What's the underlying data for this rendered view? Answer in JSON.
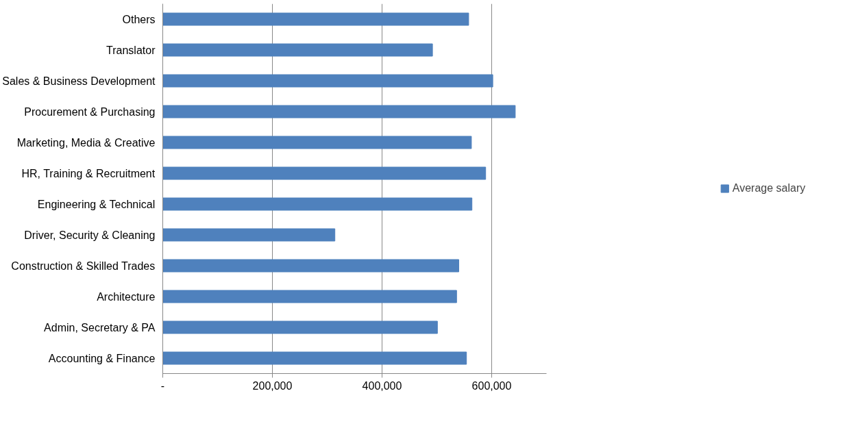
{
  "chart_data": {
    "type": "bar",
    "orientation": "horizontal",
    "categories": [
      "Others",
      "Translator",
      "Sales & Business Development",
      "Procurement & Purchasing",
      "Marketing, Media & Creative",
      "HR, Training & Recruitment",
      "Engineering & Technical",
      "Driver, Security & Cleaning",
      "Construction & Skilled Trades",
      "Architecture",
      "Admin, Secretary & PA",
      "Accounting & Finance"
    ],
    "series": [
      {
        "name": "Average salary",
        "color": "#4f81bd",
        "values": [
          558000,
          492000,
          602000,
          643000,
          563000,
          589000,
          564000,
          314000,
          540000,
          536000,
          501000,
          554000
        ]
      }
    ],
    "xlim": [
      0,
      700000
    ],
    "xticks": [
      {
        "value": 0,
        "label": "-"
      },
      {
        "value": 200000,
        "label": "200,000"
      },
      {
        "value": 400000,
        "label": "400,000"
      },
      {
        "value": 600000,
        "label": "600,000"
      }
    ],
    "grid": "x",
    "legend": "right"
  }
}
